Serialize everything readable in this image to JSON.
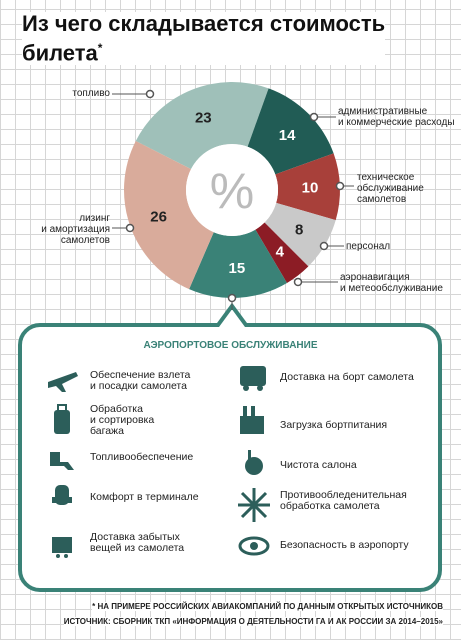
{
  "chart_data": {
    "type": "pie",
    "title": "Из чего складывается стоимость\nбилета",
    "title_mark": "*",
    "center_label": "%",
    "categories": [
      "топливо",
      "административные\nи коммерческие расходы",
      "техническое\nобслуживание\nсамолетов",
      "персонал",
      "аэронавигация\nи метеообслуживание",
      "АЭРОПОРТОВОЕ ОБСЛУЖИВАНИЕ",
      "лизинг\nи амортизация\nсамолетов"
    ],
    "values": [
      23,
      14,
      10,
      8,
      4,
      15,
      26
    ],
    "colors": [
      "#9fc0b9",
      "#215c55",
      "#a8403a",
      "#c9c9c9",
      "#8c1c25",
      "#3a8277",
      "#d9ab9b"
    ]
  },
  "services": {
    "left": [
      "Обеспечение взлета\nи посадки самолета",
      "Обработка\nи сортировка\nбагажа",
      "Топливообеспечение",
      "Комфорт в терминале",
      "Доставка забытых\nвещей из самолета"
    ],
    "right": [
      "Доставка на борт самолета",
      "Загрузка бортпитания",
      "Чистота салона",
      "Противообледенительная\nобработка самолета",
      "Безопасность в аэропорту"
    ]
  },
  "footnotes": [
    "* НА ПРИМЕРЕ РОССИЙСКИХ АВИАКОМПАНИЙ ПО ДАННЫМ ОТКРЫТЫХ ИСТОЧНИКОВ",
    "ИСТОЧНИК: СБОРНИК ТКП «ИНФОРМАЦИЯ О ДЕЯТЕЛЬНОСТИ ГА И АК РОССИИ ЗА 2014–2015»"
  ]
}
